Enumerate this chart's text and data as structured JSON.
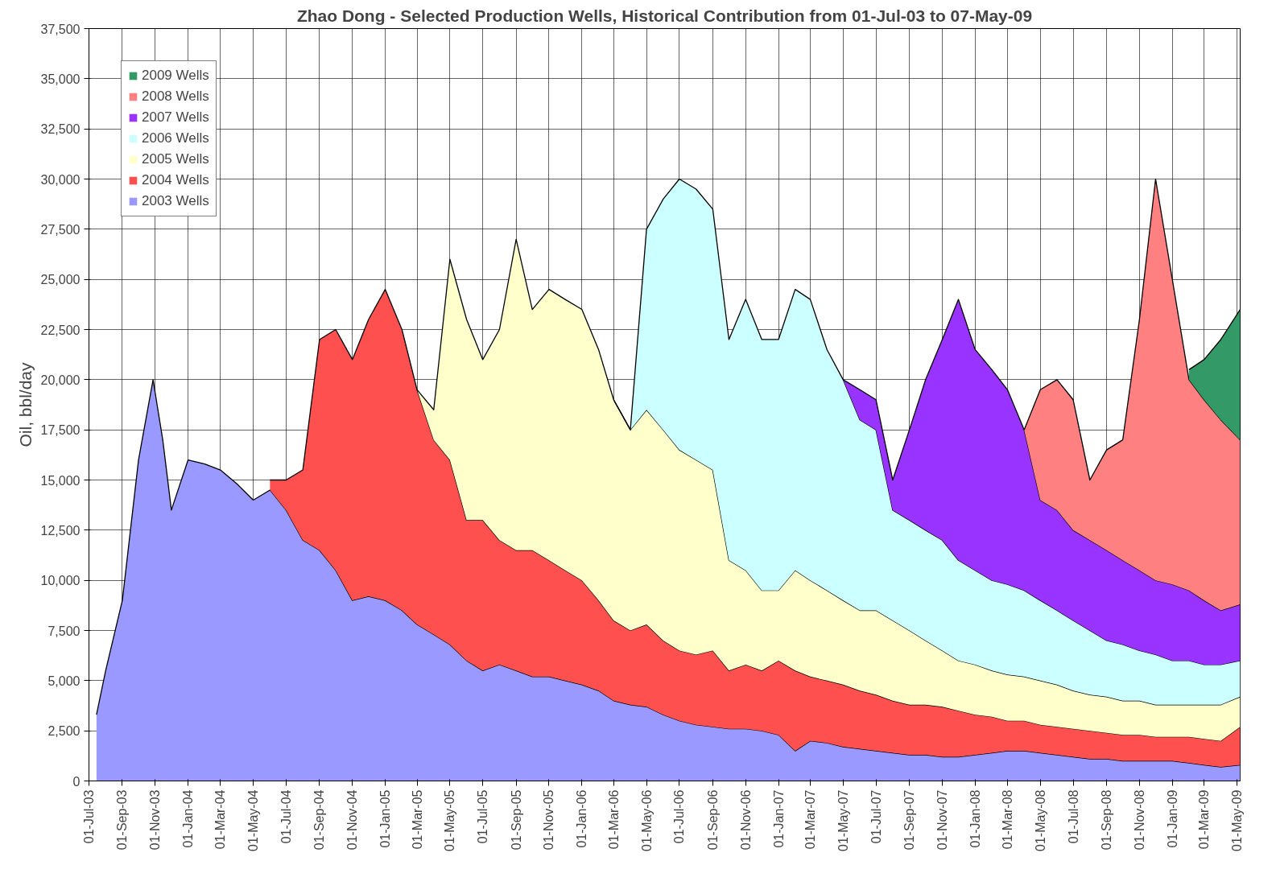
{
  "chart_data": {
    "type": "area",
    "stacked": true,
    "title": "Zhao Dong - Selected Production Wells, Historical Contribution from 01-Jul-03 to 07-May-09",
    "ylabel": "Oil, bbl/day",
    "x": [
      "2003-07-15",
      "2003-08-01",
      "2003-09-01",
      "2003-10-01",
      "2003-10-28",
      "2003-11-15",
      "2003-12-01",
      "2004-01-01",
      "2004-02-01",
      "2004-03-01",
      "2004-04-01",
      "2004-05-01",
      "2004-06-01",
      "2004-07-01",
      "2004-08-01",
      "2004-09-01",
      "2004-10-01",
      "2004-11-01",
      "2004-12-01",
      "2005-01-01",
      "2005-02-01",
      "2005-03-01",
      "2005-04-01",
      "2005-05-01",
      "2005-06-01",
      "2005-07-01",
      "2005-08-01",
      "2005-09-01",
      "2005-10-01",
      "2005-11-01",
      "2005-12-01",
      "2006-01-01",
      "2006-02-01",
      "2006-03-01",
      "2006-04-01",
      "2006-05-01",
      "2006-06-01",
      "2006-07-01",
      "2006-08-01",
      "2006-09-01",
      "2006-10-01",
      "2006-11-01",
      "2006-12-01",
      "2007-01-01",
      "2007-02-01",
      "2007-03-01",
      "2007-04-01",
      "2007-05-01",
      "2007-06-01",
      "2007-07-01",
      "2007-08-01",
      "2007-09-01",
      "2007-10-01",
      "2007-11-01",
      "2007-12-01",
      "2008-01-01",
      "2008-02-01",
      "2008-03-01",
      "2008-04-01",
      "2008-05-01",
      "2008-06-01",
      "2008-07-01",
      "2008-08-01",
      "2008-09-01",
      "2008-10-01",
      "2008-11-01",
      "2008-12-01",
      "2009-01-01",
      "2009-02-01",
      "2009-03-01",
      "2009-04-01",
      "2009-05-07"
    ],
    "series": [
      {
        "name": "2003 Wells",
        "color": "#9999ff",
        "values": [
          3300,
          5500,
          9000,
          16000,
          20000,
          17000,
          13500,
          16000,
          15800,
          15500,
          14800,
          14000,
          14500,
          13500,
          12000,
          11500,
          10500,
          9000,
          9200,
          9000,
          8500,
          7800,
          7300,
          6800,
          6000,
          5500,
          5800,
          5500,
          5200,
          5200,
          5000,
          4800,
          4500,
          4000,
          3800,
          3700,
          3300,
          3000,
          2800,
          2700,
          2600,
          2600,
          2500,
          2300,
          1500,
          2000,
          1900,
          1700,
          1600,
          1500,
          1400,
          1300,
          1300,
          1200,
          1200,
          1300,
          1400,
          1500,
          1500,
          1400,
          1300,
          1200,
          1100,
          1100,
          1000,
          1000,
          1000,
          1000,
          900,
          800,
          700,
          800
        ]
      },
      {
        "name": "2004 Wells",
        "color": "#ff5050",
        "values": [
          null,
          null,
          null,
          null,
          null,
          null,
          null,
          null,
          null,
          null,
          null,
          null,
          500,
          1500,
          3500,
          10500,
          12000,
          12000,
          13800,
          15500,
          14000,
          11700,
          9700,
          9200,
          7000,
          7500,
          6200,
          6000,
          6300,
          5800,
          5500,
          5200,
          4500,
          4000,
          3700,
          4100,
          3700,
          3500,
          3500,
          3800,
          2900,
          3200,
          3000,
          3700,
          4000,
          3200,
          3100,
          3100,
          2900,
          2800,
          2600,
          2500,
          2500,
          2500,
          2300,
          2000,
          1800,
          1500,
          1500,
          1400,
          1400,
          1400,
          1400,
          1300,
          1300,
          1300,
          1200,
          1200,
          1300,
          1300,
          1300,
          1900
        ]
      },
      {
        "name": "2005 Wells",
        "color": "#ffffcc",
        "values": [
          null,
          null,
          null,
          null,
          null,
          null,
          null,
          null,
          null,
          null,
          null,
          null,
          null,
          null,
          null,
          null,
          null,
          null,
          null,
          null,
          null,
          0,
          1500,
          10000,
          10000,
          8000,
          10500,
          15500,
          12000,
          13500,
          13500,
          13500,
          12500,
          11000,
          10000,
          10700,
          10500,
          10000,
          9700,
          9000,
          5500,
          4700,
          4000,
          3500,
          5000,
          4800,
          4500,
          4200,
          4000,
          4200,
          4000,
          3700,
          3200,
          2800,
          2500,
          2500,
          2300,
          2300,
          2200,
          2200,
          2100,
          1900,
          1800,
          1800,
          1700,
          1700,
          1600,
          1600,
          1600,
          1700,
          1800,
          1500
        ]
      },
      {
        "name": "2006 Wells",
        "color": "#ccffff",
        "values": [
          null,
          null,
          null,
          null,
          null,
          null,
          null,
          null,
          null,
          null,
          null,
          null,
          null,
          null,
          null,
          null,
          null,
          null,
          null,
          null,
          null,
          null,
          null,
          null,
          null,
          null,
          null,
          null,
          null,
          null,
          null,
          null,
          null,
          0,
          0,
          9000,
          11500,
          13500,
          13500,
          13000,
          11000,
          13500,
          12500,
          12500,
          14000,
          14000,
          12000,
          11000,
          9500,
          9000,
          5500,
          5500,
          5500,
          5500,
          5000,
          4700,
          4500,
          4500,
          4300,
          4000,
          3700,
          3500,
          3200,
          2800,
          2800,
          2500,
          2500,
          2200,
          2200,
          2000,
          2000,
          1800
        ]
      },
      {
        "name": "2007 Wells",
        "color": "#9933ff",
        "values": [
          null,
          null,
          null,
          null,
          null,
          null,
          null,
          null,
          null,
          null,
          null,
          null,
          null,
          null,
          null,
          null,
          null,
          null,
          null,
          null,
          null,
          null,
          null,
          null,
          null,
          null,
          null,
          null,
          null,
          null,
          null,
          null,
          null,
          null,
          null,
          null,
          null,
          null,
          null,
          null,
          null,
          null,
          null,
          null,
          null,
          null,
          null,
          0,
          1500,
          1500,
          1500,
          4500,
          7500,
          10000,
          13000,
          11000,
          10500,
          9700,
          8000,
          5000,
          5000,
          4500,
          4500,
          4500,
          4200,
          4000,
          3700,
          3800,
          3500,
          3200,
          2700,
          2800
        ]
      },
      {
        "name": "2008 Wells",
        "color": "#ff8080",
        "values": [
          null,
          null,
          null,
          null,
          null,
          null,
          null,
          null,
          null,
          null,
          null,
          null,
          null,
          null,
          null,
          null,
          null,
          null,
          null,
          null,
          null,
          null,
          null,
          null,
          null,
          null,
          null,
          null,
          null,
          null,
          null,
          null,
          null,
          null,
          null,
          null,
          null,
          null,
          null,
          null,
          null,
          null,
          null,
          null,
          null,
          null,
          null,
          null,
          null,
          null,
          null,
          null,
          null,
          null,
          null,
          null,
          null,
          null,
          0,
          5500,
          6500,
          6500,
          3000,
          5000,
          6000,
          12500,
          20000,
          15200,
          10500,
          10000,
          9500,
          8200
        ]
      },
      {
        "name": "2009 Wells",
        "color": "#339966",
        "values": [
          null,
          null,
          null,
          null,
          null,
          null,
          null,
          null,
          null,
          null,
          null,
          null,
          null,
          null,
          null,
          null,
          null,
          null,
          null,
          null,
          null,
          null,
          null,
          null,
          null,
          null,
          null,
          null,
          null,
          null,
          null,
          null,
          null,
          null,
          null,
          null,
          null,
          null,
          null,
          null,
          null,
          null,
          null,
          null,
          null,
          null,
          null,
          null,
          null,
          null,
          null,
          null,
          null,
          null,
          null,
          null,
          null,
          null,
          null,
          null,
          null,
          null,
          null,
          null,
          null,
          null,
          null,
          null,
          500,
          2000,
          4000,
          6500
        ]
      }
    ],
    "xlim": [
      "2003-07-01",
      "2009-05-07"
    ],
    "xticks": [
      {
        "value": "2003-07-01",
        "label": "01-Jul-03"
      },
      {
        "value": "2003-09-01",
        "label": "01-Sep-03"
      },
      {
        "value": "2003-11-01",
        "label": "01-Nov-03"
      },
      {
        "value": "2004-01-01",
        "label": "01-Jan-04"
      },
      {
        "value": "2004-03-01",
        "label": "01-Mar-04"
      },
      {
        "value": "2004-05-01",
        "label": "01-May-04"
      },
      {
        "value": "2004-07-01",
        "label": "01-Jul-04"
      },
      {
        "value": "2004-09-01",
        "label": "01-Sep-04"
      },
      {
        "value": "2004-11-01",
        "label": "01-Nov-04"
      },
      {
        "value": "2005-01-01",
        "label": "01-Jan-05"
      },
      {
        "value": "2005-03-01",
        "label": "01-Mar-05"
      },
      {
        "value": "2005-05-01",
        "label": "01-May-05"
      },
      {
        "value": "2005-07-01",
        "label": "01-Jul-05"
      },
      {
        "value": "2005-09-01",
        "label": "01-Sep-05"
      },
      {
        "value": "2005-11-01",
        "label": "01-Nov-05"
      },
      {
        "value": "2006-01-01",
        "label": "01-Jan-06"
      },
      {
        "value": "2006-03-01",
        "label": "01-Mar-06"
      },
      {
        "value": "2006-05-01",
        "label": "01-May-06"
      },
      {
        "value": "2006-07-01",
        "label": "01-Jul-06"
      },
      {
        "value": "2006-09-01",
        "label": "01-Sep-06"
      },
      {
        "value": "2006-11-01",
        "label": "01-Nov-06"
      },
      {
        "value": "2007-01-01",
        "label": "01-Jan-07"
      },
      {
        "value": "2007-03-01",
        "label": "01-Mar-07"
      },
      {
        "value": "2007-05-01",
        "label": "01-May-07"
      },
      {
        "value": "2007-07-01",
        "label": "01-Jul-07"
      },
      {
        "value": "2007-09-01",
        "label": "01-Sep-07"
      },
      {
        "value": "2007-11-01",
        "label": "01-Nov-07"
      },
      {
        "value": "2008-01-01",
        "label": "01-Jan-08"
      },
      {
        "value": "2008-03-01",
        "label": "01-Mar-08"
      },
      {
        "value": "2008-05-01",
        "label": "01-May-08"
      },
      {
        "value": "2008-07-01",
        "label": "01-Jul-08"
      },
      {
        "value": "2008-09-01",
        "label": "01-Sep-08"
      },
      {
        "value": "2008-11-01",
        "label": "01-Nov-08"
      },
      {
        "value": "2009-01-01",
        "label": "01-Jan-09"
      },
      {
        "value": "2009-03-01",
        "label": "01-Mar-09"
      },
      {
        "value": "2009-05-01",
        "label": "01-May-09"
      }
    ],
    "ylim": [
      0,
      37500
    ],
    "yticks": [
      0,
      {
        "value": 2500,
        "label": "2,500"
      },
      {
        "value": 5000,
        "label": "5,000"
      },
      {
        "value": 7500,
        "label": "7,500"
      },
      {
        "value": 10000,
        "label": "10,000"
      },
      {
        "value": 12500,
        "label": "12,500"
      },
      {
        "value": 15000,
        "label": "15,000"
      },
      {
        "value": 17500,
        "label": "17,500"
      },
      {
        "value": 20000,
        "label": "20,000"
      },
      {
        "value": 22500,
        "label": "22,500"
      },
      {
        "value": 25000,
        "label": "25,000"
      },
      {
        "value": 27500,
        "label": "27,500"
      },
      {
        "value": 30000,
        "label": "30,000"
      },
      {
        "value": 32500,
        "label": "32,500"
      },
      {
        "value": 35000,
        "label": "35,000"
      },
      {
        "value": 37500,
        "label": "37,500"
      }
    ],
    "grid": true,
    "legend": "top left"
  }
}
